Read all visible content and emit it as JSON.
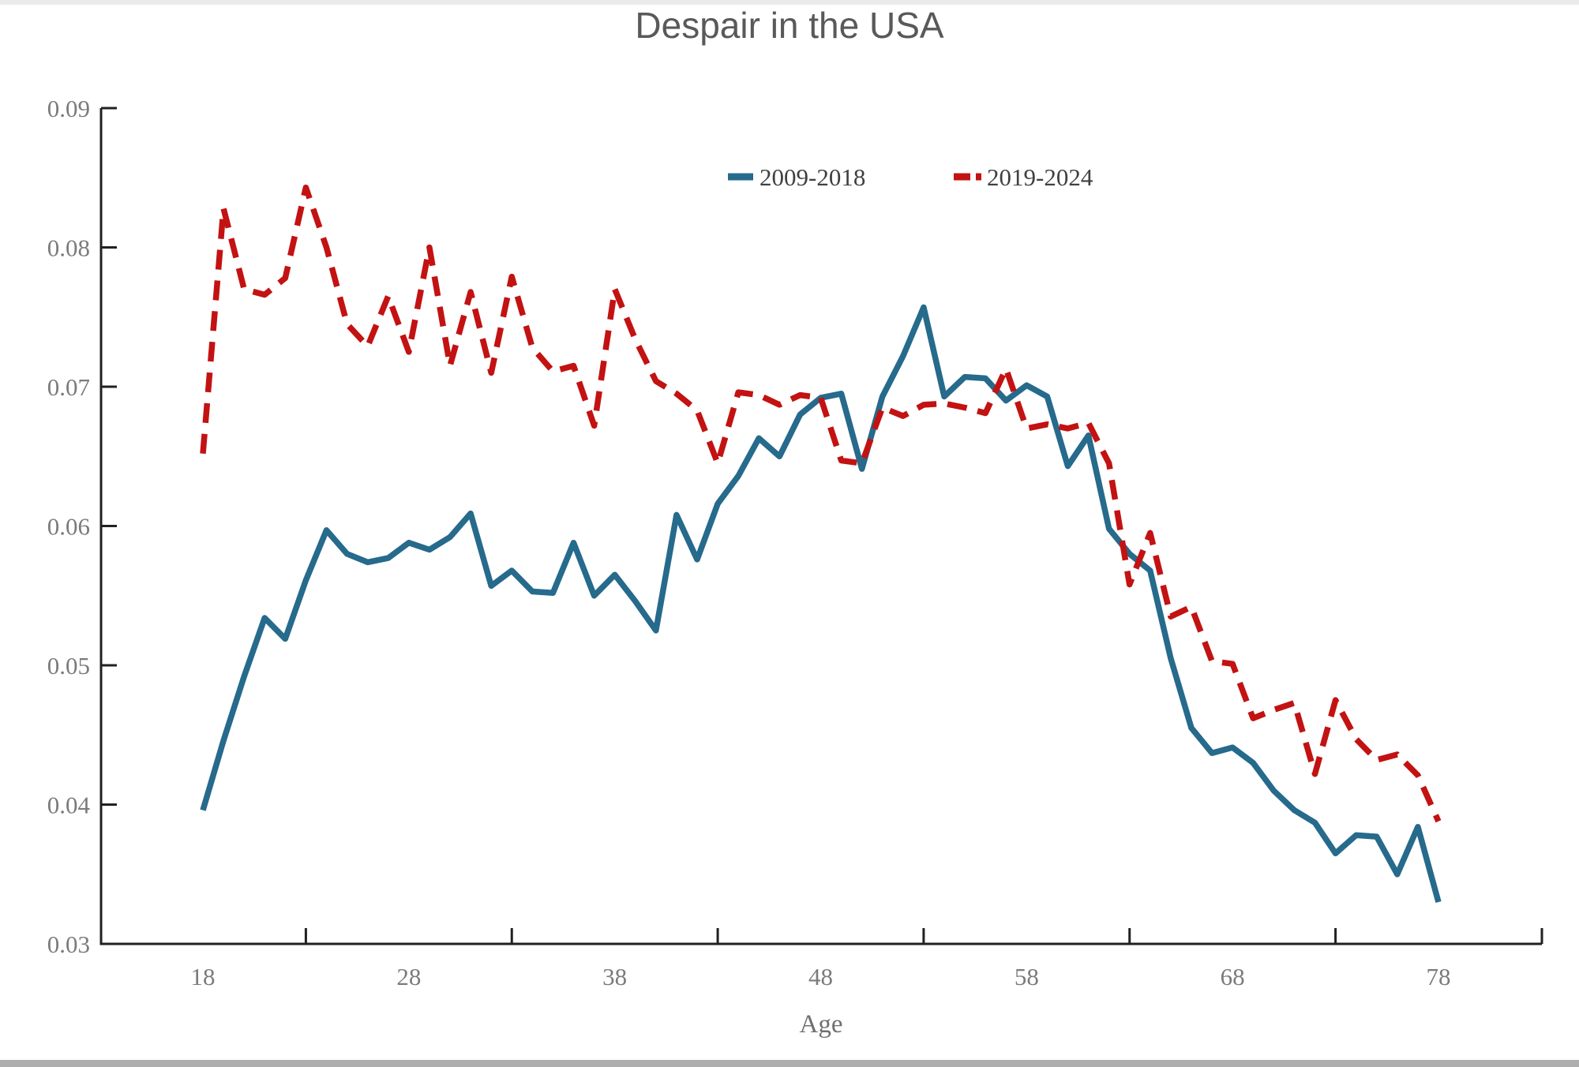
{
  "page": {
    "background": "#ffffff",
    "top_edge_strip_color": "#ebebeb",
    "bottom_edge_strip_color": "#aeaeae"
  },
  "colors": {
    "axis": "#212121",
    "tick_label": "#7b7b7b",
    "title": "#595959",
    "legend_text": "#404040",
    "series_blue": "#266a8c",
    "series_red": "#c31212"
  },
  "chart_data": {
    "type": "line",
    "title": "Despair in the USA",
    "xlabel": "Age",
    "ylabel": "",
    "xlim": [
      13.1,
      83.0
    ],
    "ylim": [
      0.03,
      0.09
    ],
    "x_tick_labels": [
      18,
      28,
      38,
      48,
      58,
      68,
      78
    ],
    "x_minor_ticks": [
      23,
      33,
      43,
      53,
      63,
      73
    ],
    "axis_end_tick_x": 83.0,
    "y_ticks": [
      0.03,
      0.04,
      0.05,
      0.06,
      0.07,
      0.08,
      0.09
    ],
    "grid": false,
    "legend_position": "top-center",
    "x": [
      18,
      19,
      20,
      21,
      22,
      23,
      24,
      25,
      26,
      27,
      28,
      29,
      30,
      31,
      32,
      33,
      34,
      35,
      36,
      37,
      38,
      39,
      40,
      41,
      42,
      43,
      44,
      45,
      46,
      47,
      48,
      49,
      50,
      51,
      52,
      53,
      54,
      55,
      56,
      57,
      58,
      59,
      60,
      61,
      62,
      63,
      64,
      65,
      66,
      67,
      68,
      69,
      70,
      71,
      72,
      73,
      74,
      75,
      76,
      77,
      78
    ],
    "series": [
      {
        "name": "2009-2018",
        "style": "solid",
        "color": "#266a8c",
        "values": [
          0.0396,
          0.0446,
          0.0492,
          0.0534,
          0.0519,
          0.0561,
          0.0597,
          0.058,
          0.0574,
          0.0577,
          0.0588,
          0.0583,
          0.0592,
          0.0609,
          0.0557,
          0.0568,
          0.0553,
          0.0552,
          0.0588,
          0.055,
          0.0565,
          0.0546,
          0.0525,
          0.0608,
          0.0576,
          0.0616,
          0.0636,
          0.0663,
          0.065,
          0.068,
          0.0692,
          0.0695,
          0.0641,
          0.0693,
          0.0722,
          0.0757,
          0.0693,
          0.0707,
          0.0706,
          0.069,
          0.0701,
          0.0693,
          0.0643,
          0.0665,
          0.0598,
          0.058,
          0.0568,
          0.0505,
          0.0455,
          0.0437,
          0.0441,
          0.043,
          0.041,
          0.0396,
          0.0387,
          0.0365,
          0.0378,
          0.0377,
          0.035,
          0.0384,
          0.033
        ]
      },
      {
        "name": "2019-2024",
        "style": "dashed",
        "color": "#c31212",
        "values": [
          0.0652,
          0.0828,
          0.077,
          0.0766,
          0.0778,
          0.0843,
          0.08,
          0.0745,
          0.0729,
          0.0765,
          0.0725,
          0.08,
          0.0715,
          0.0768,
          0.071,
          0.0779,
          0.0728,
          0.0711,
          0.0715,
          0.0672,
          0.077,
          0.0734,
          0.0704,
          0.0695,
          0.0683,
          0.0645,
          0.0696,
          0.0694,
          0.0687,
          0.0694,
          0.0692,
          0.0647,
          0.0645,
          0.0685,
          0.0679,
          0.0687,
          0.0688,
          0.0685,
          0.0681,
          0.0713,
          0.067,
          0.0673,
          0.067,
          0.0674,
          0.0645,
          0.0558,
          0.0595,
          0.0535,
          0.0542,
          0.0503,
          0.0501,
          0.0462,
          0.0468,
          0.0473,
          0.0422,
          0.0475,
          0.0447,
          0.0432,
          0.0436,
          0.0421,
          0.0388
        ]
      }
    ]
  }
}
